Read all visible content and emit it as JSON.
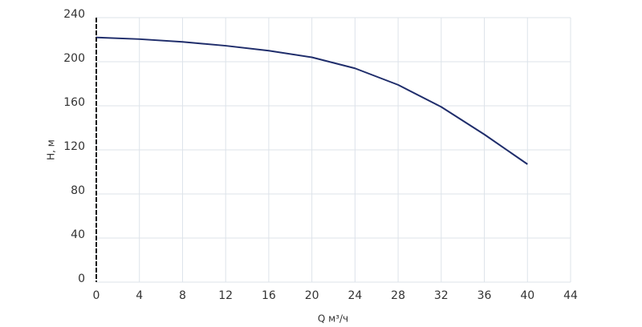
{
  "chart_data": {
    "type": "line",
    "x_label": "Q м³/ч",
    "y_label": "H, м",
    "x": [
      0,
      4,
      8,
      12,
      16,
      20,
      24,
      28,
      32,
      36,
      40
    ],
    "values": [
      222,
      220.5,
      218,
      214.5,
      210,
      204,
      194,
      179,
      159,
      134,
      107
    ],
    "color": "#1f2d6b",
    "xlim": [
      0,
      44
    ],
    "xticks": [
      0,
      4,
      8,
      12,
      16,
      20,
      24,
      28,
      32,
      36,
      40,
      44
    ],
    "ylim": [
      0,
      240
    ],
    "yticks": [
      0,
      40,
      80,
      120,
      160,
      200,
      240
    ],
    "grid": true
  }
}
